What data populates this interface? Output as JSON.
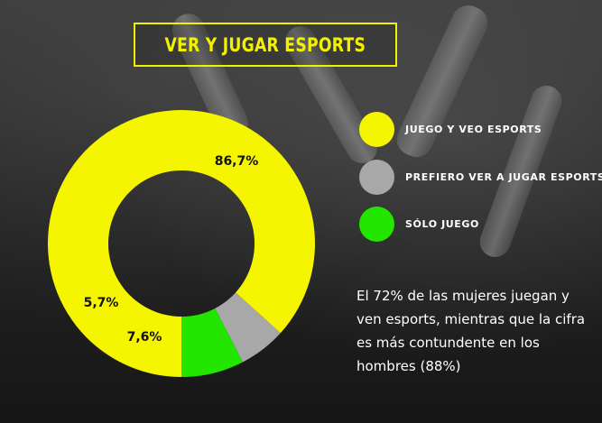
{
  "title": "VER Y JUGAR ESPORTS",
  "note": "El 72% de las mujeres juegan y ven esports, mientras que la cifra es más contundente en los hombres (88%)",
  "chart_data": {
    "type": "pie",
    "style": "donut",
    "categories": [
      "JUEGO Y VEO ESPORTS",
      "PREFIERO VER A JUGAR ESPORTS",
      "SÓLO JUEGO"
    ],
    "values": [
      86.7,
      5.7,
      7.6
    ],
    "value_labels": [
      "86,7%",
      "5,7%",
      "7,6%"
    ],
    "colors": [
      "#f5f500",
      "#a8a8a8",
      "#22e600"
    ],
    "legend_placement": "right"
  }
}
